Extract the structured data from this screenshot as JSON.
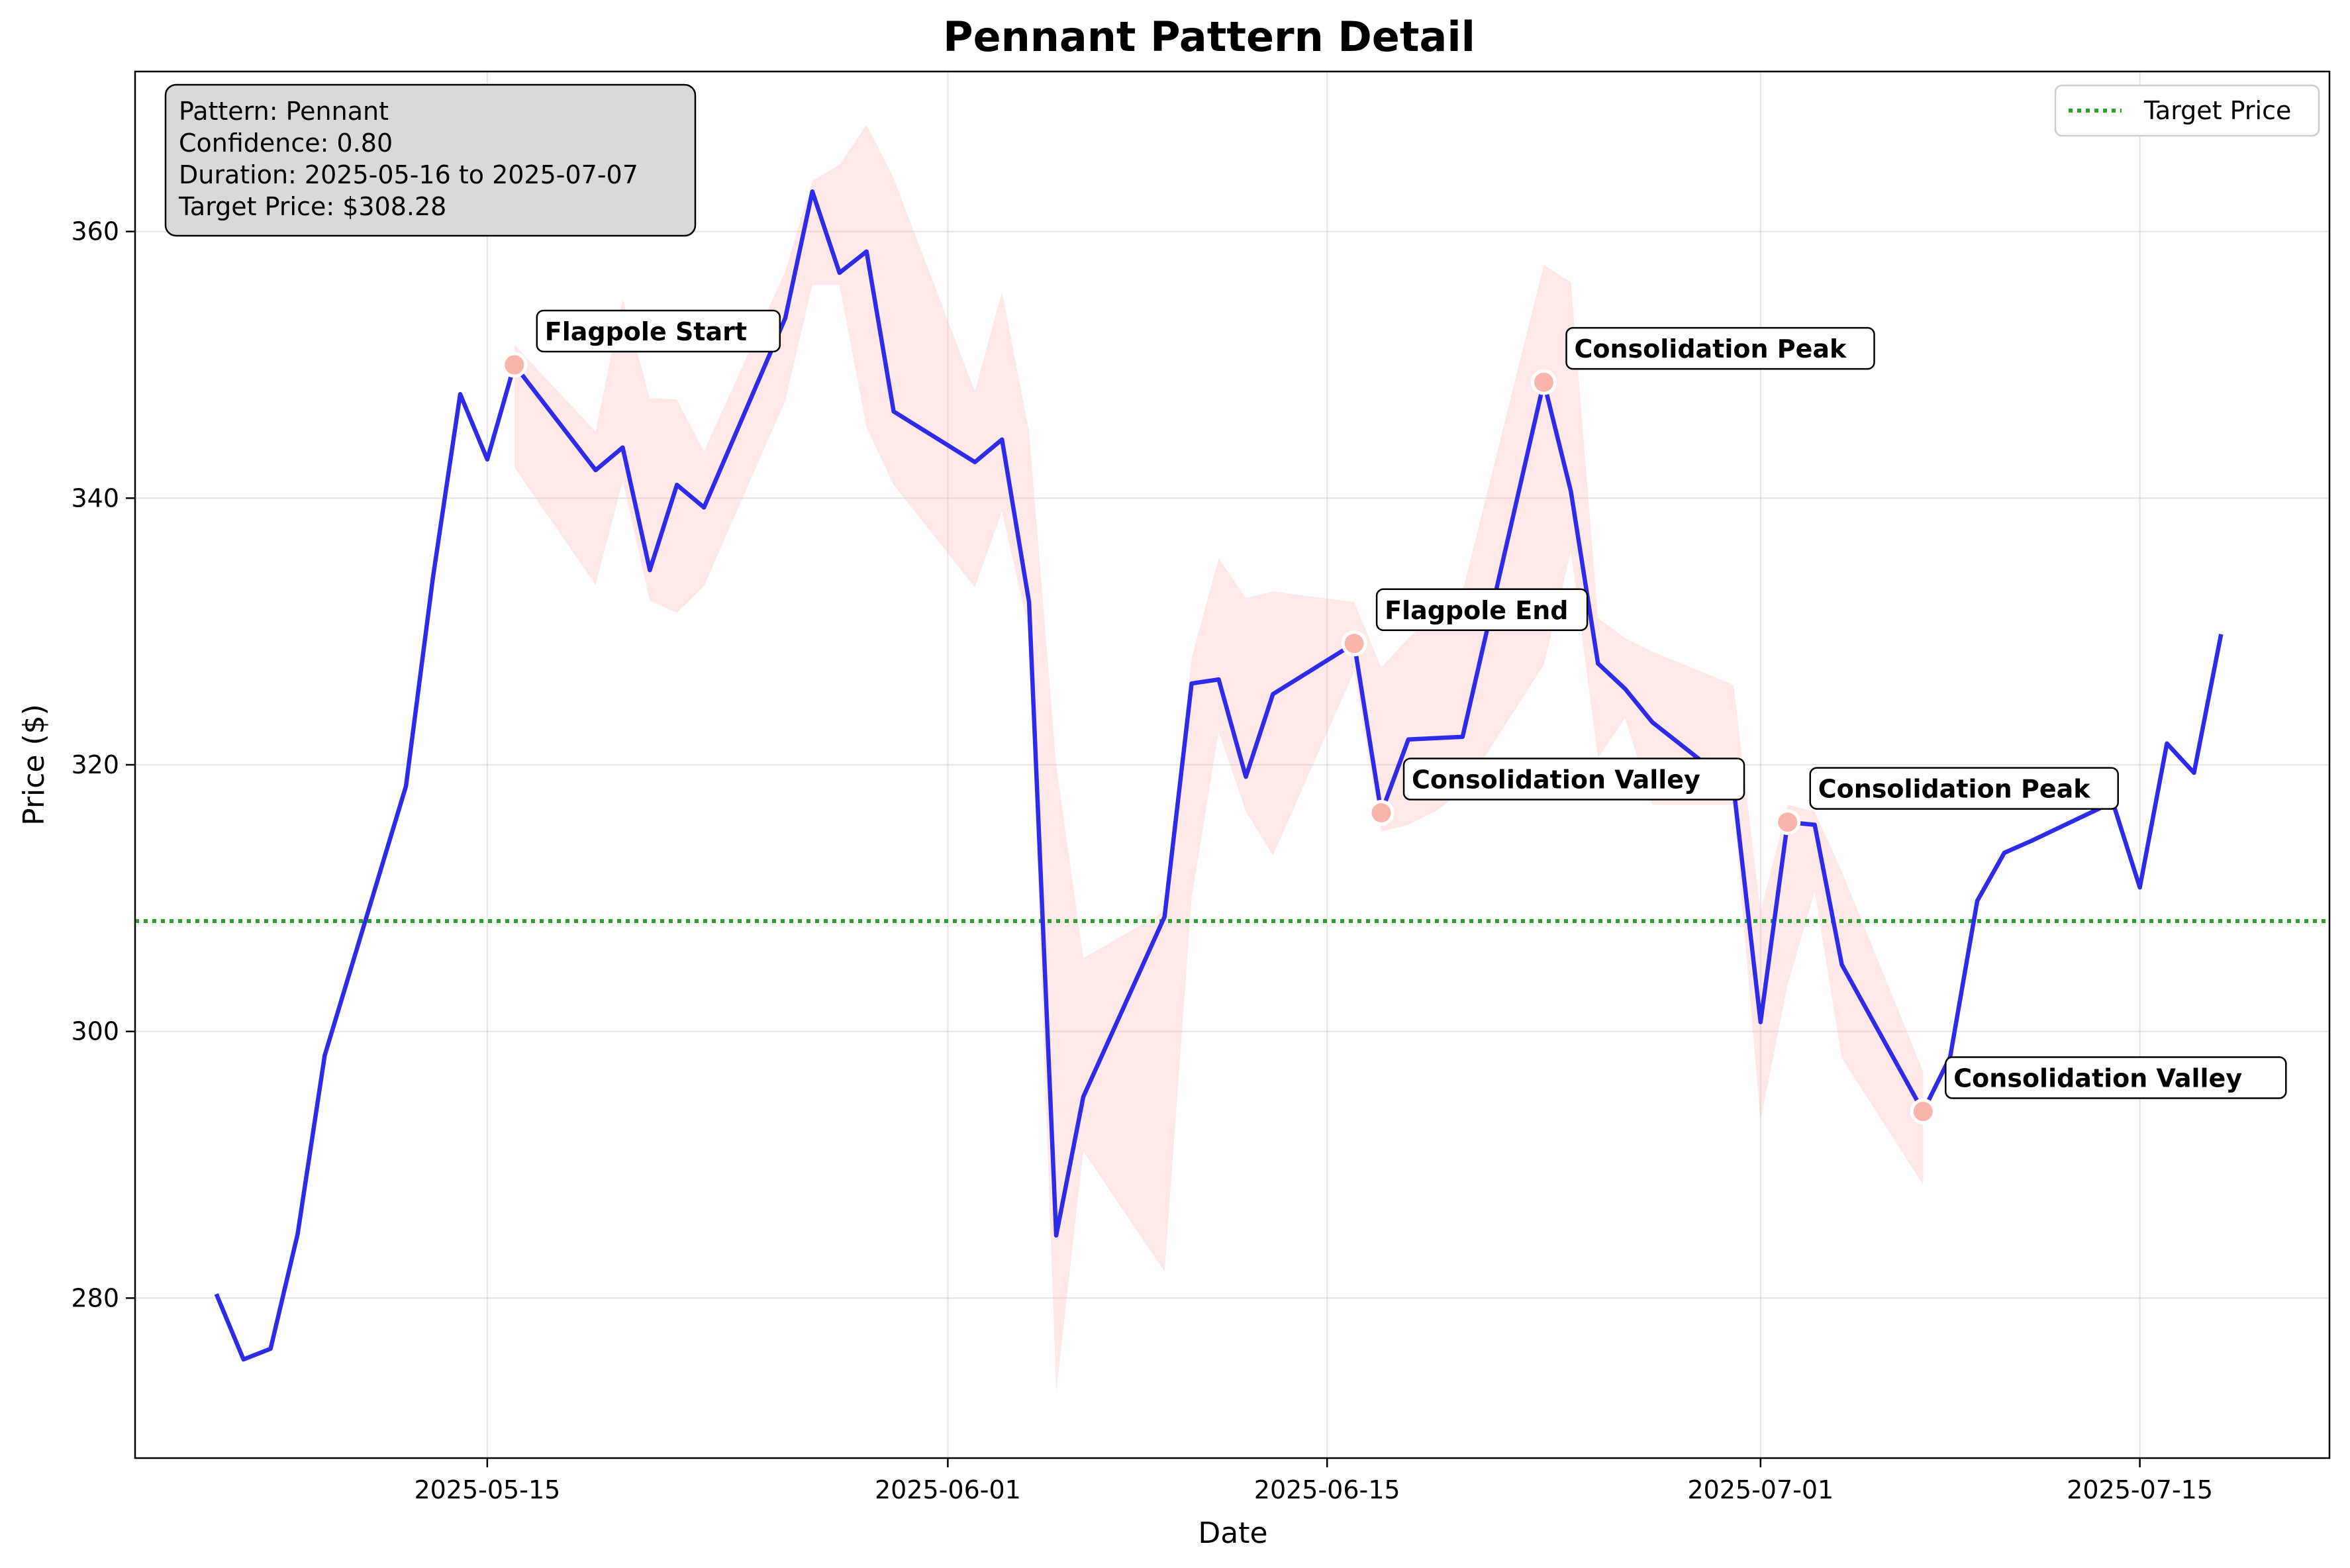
{
  "chart_data": {
    "type": "line",
    "title": "Pennant Pattern Detail",
    "xlabel": "Date",
    "ylabel": "Price ($)",
    "xlim": [
      "2025-05-02",
      "2025-07-22"
    ],
    "ylim": [
      268,
      372
    ],
    "x_ticks": [
      "2025-05-15",
      "2025-06-01",
      "2025-06-15",
      "2025-07-01",
      "2025-07-15"
    ],
    "y_ticks": [
      280,
      300,
      320,
      340,
      360
    ],
    "grid": true,
    "legend_placement": "top-right",
    "colors": {
      "price_line": "#2d2ae8",
      "band_fill": "#ffb3b3",
      "target_line": "#2ca02c",
      "marker": "#f9b5ab",
      "info_box": "#d9d9d9"
    },
    "series": [
      {
        "name": "",
        "x": [
          "2025-05-05",
          "2025-05-06",
          "2025-05-07",
          "2025-05-08",
          "2025-05-09",
          "2025-05-12",
          "2025-05-13",
          "2025-05-14",
          "2025-05-15",
          "2025-05-16",
          "2025-05-19",
          "2025-05-20",
          "2025-05-21",
          "2025-05-22",
          "2025-05-23",
          "2025-05-26",
          "2025-05-27",
          "2025-05-28",
          "2025-05-29",
          "2025-05-30",
          "2025-06-02",
          "2025-06-03",
          "2025-06-04",
          "2025-06-05",
          "2025-06-06",
          "2025-06-09",
          "2025-06-10",
          "2025-06-11",
          "2025-06-12",
          "2025-06-13",
          "2025-06-16",
          "2025-06-17",
          "2025-06-18",
          "2025-06-19",
          "2025-06-20",
          "2025-06-23",
          "2025-06-24",
          "2025-06-25",
          "2025-06-26",
          "2025-06-27",
          "2025-06-30",
          "2025-07-01",
          "2025-07-02",
          "2025-07-03",
          "2025-07-04",
          "2025-07-07",
          "2025-07-08",
          "2025-07-09",
          "2025-07-10",
          "2025-07-11",
          "2025-07-14",
          "2025-07-15",
          "2025-07-16",
          "2025-07-17",
          "2025-07-18"
        ],
        "values": [
          280.3,
          275.4,
          276.2,
          284.8,
          298.2,
          318.4,
          334.1,
          347.8,
          342.9,
          350.0,
          342.1,
          343.8,
          334.6,
          341.0,
          339.3,
          353.5,
          363.0,
          356.9,
          358.5,
          346.5,
          342.7,
          344.4,
          332.2,
          284.7,
          295.1,
          308.6,
          326.1,
          326.4,
          319.1,
          325.3,
          329.1,
          316.4,
          321.9,
          322.0,
          322.1,
          348.7,
          340.5,
          327.6,
          325.7,
          323.2,
          318.4,
          300.7,
          315.7,
          315.5,
          305.0,
          294.0,
          298.1,
          309.8,
          313.4,
          314.3,
          317.2,
          310.8,
          321.6,
          319.4,
          329.8
        ]
      }
    ],
    "band": {
      "x": [
        "2025-05-16",
        "2025-05-19",
        "2025-05-20",
        "2025-05-21",
        "2025-05-22",
        "2025-05-23",
        "2025-05-26",
        "2025-05-27",
        "2025-05-28",
        "2025-05-29",
        "2025-05-30",
        "2025-06-02",
        "2025-06-03",
        "2025-06-04",
        "2025-06-05",
        "2025-06-06",
        "2025-06-09",
        "2025-06-10",
        "2025-06-11",
        "2025-06-12",
        "2025-06-13",
        "2025-06-16",
        "2025-06-17",
        "2025-06-18",
        "2025-06-19",
        "2025-06-20",
        "2025-06-23",
        "2025-06-24",
        "2025-06-25",
        "2025-06-26",
        "2025-06-27",
        "2025-06-30",
        "2025-07-01",
        "2025-07-02",
        "2025-07-03",
        "2025-07-04",
        "2025-07-07"
      ],
      "upper": [
        351.5,
        345.0,
        355.0,
        347.5,
        347.4,
        343.5,
        357.0,
        363.8,
        365.0,
        368.0,
        364.0,
        348.0,
        355.5,
        345.0,
        320.0,
        305.5,
        309.0,
        328.0,
        335.5,
        332.5,
        333.0,
        332.2,
        327.3,
        329.5,
        331.3,
        333.0,
        357.5,
        356.2,
        331.0,
        329.5,
        328.5,
        326.0,
        309.0,
        317.0,
        316.5,
        312.0,
        297.0
      ],
      "lower": [
        342.3,
        333.5,
        341.3,
        332.3,
        331.4,
        333.4,
        347.3,
        356.0,
        356.0,
        345.3,
        341.0,
        333.3,
        339.0,
        330.0,
        273.0,
        291.0,
        282.0,
        310.0,
        322.5,
        316.5,
        313.2,
        327.0,
        315.0,
        315.5,
        316.5,
        318.0,
        327.5,
        336.0,
        320.5,
        323.5,
        317.0,
        317.0,
        293.3,
        303.5,
        310.5,
        298.0,
        288.5
      ]
    },
    "target_price": {
      "name": "Target Price",
      "value": 308.28
    },
    "annotations": [
      {
        "label": "Flagpole Start",
        "x": "2025-05-16",
        "y": 350.0
      },
      {
        "label": "Flagpole End",
        "x": "2025-06-16",
        "y": 329.1
      },
      {
        "label": "Consolidation Valley",
        "x": "2025-06-17",
        "y": 316.4
      },
      {
        "label": "Consolidation Peak",
        "x": "2025-06-23",
        "y": 348.7
      },
      {
        "label": "Consolidation Peak",
        "x": "2025-07-02",
        "y": 315.7
      },
      {
        "label": "Consolidation Valley",
        "x": "2025-07-07",
        "y": 294.0
      }
    ],
    "info_box": [
      "Pattern: Pennant",
      "Confidence: 0.80",
      "Duration: 2025-05-16 to 2025-07-07",
      "Target Price: $308.28"
    ]
  }
}
